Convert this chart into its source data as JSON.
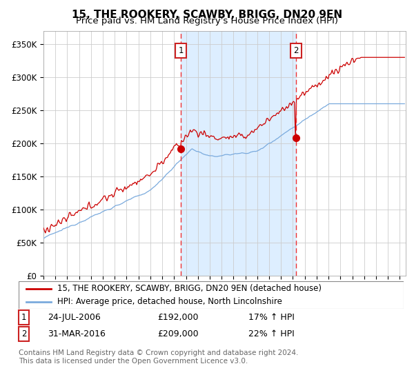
{
  "title": "15, THE ROOKERY, SCAWBY, BRIGG, DN20 9EN",
  "subtitle": "Price paid vs. HM Land Registry's House Price Index (HPI)",
  "ylabel_ticks": [
    "£0",
    "£50K",
    "£100K",
    "£150K",
    "£200K",
    "£250K",
    "£300K",
    "£350K"
  ],
  "ytick_vals": [
    0,
    50000,
    100000,
    150000,
    200000,
    250000,
    300000,
    350000
  ],
  "ylim": [
    0,
    370000
  ],
  "xlim_start": 1995.0,
  "xlim_end": 2025.5,
  "transaction1": {
    "date_year": 2006.56,
    "price": 192000,
    "label": "1",
    "date_str": "24-JUL-2006",
    "pct": "17%"
  },
  "transaction2": {
    "date_year": 2016.25,
    "price": 209000,
    "label": "2",
    "date_str": "31-MAR-2016",
    "pct": "22%"
  },
  "legend_line1": "15, THE ROOKERY, SCAWBY, BRIGG, DN20 9EN (detached house)",
  "legend_line2": "HPI: Average price, detached house, North Lincolnshire",
  "footer1": "Contains HM Land Registry data © Crown copyright and database right 2024.",
  "footer2": "This data is licensed under the Open Government Licence v3.0.",
  "line_red_color": "#cc0000",
  "line_blue_color": "#7aaadd",
  "bg_fill_color": "#ddeeff",
  "dashed_line_color": "#ee3333",
  "marker_color": "#cc0000",
  "box_edge_color": "#cc2222",
  "grid_color": "#cccccc",
  "title_fontsize": 11,
  "subtitle_fontsize": 9.5,
  "tick_fontsize": 8.5,
  "legend_fontsize": 8.5,
  "footer_fontsize": 7.5
}
